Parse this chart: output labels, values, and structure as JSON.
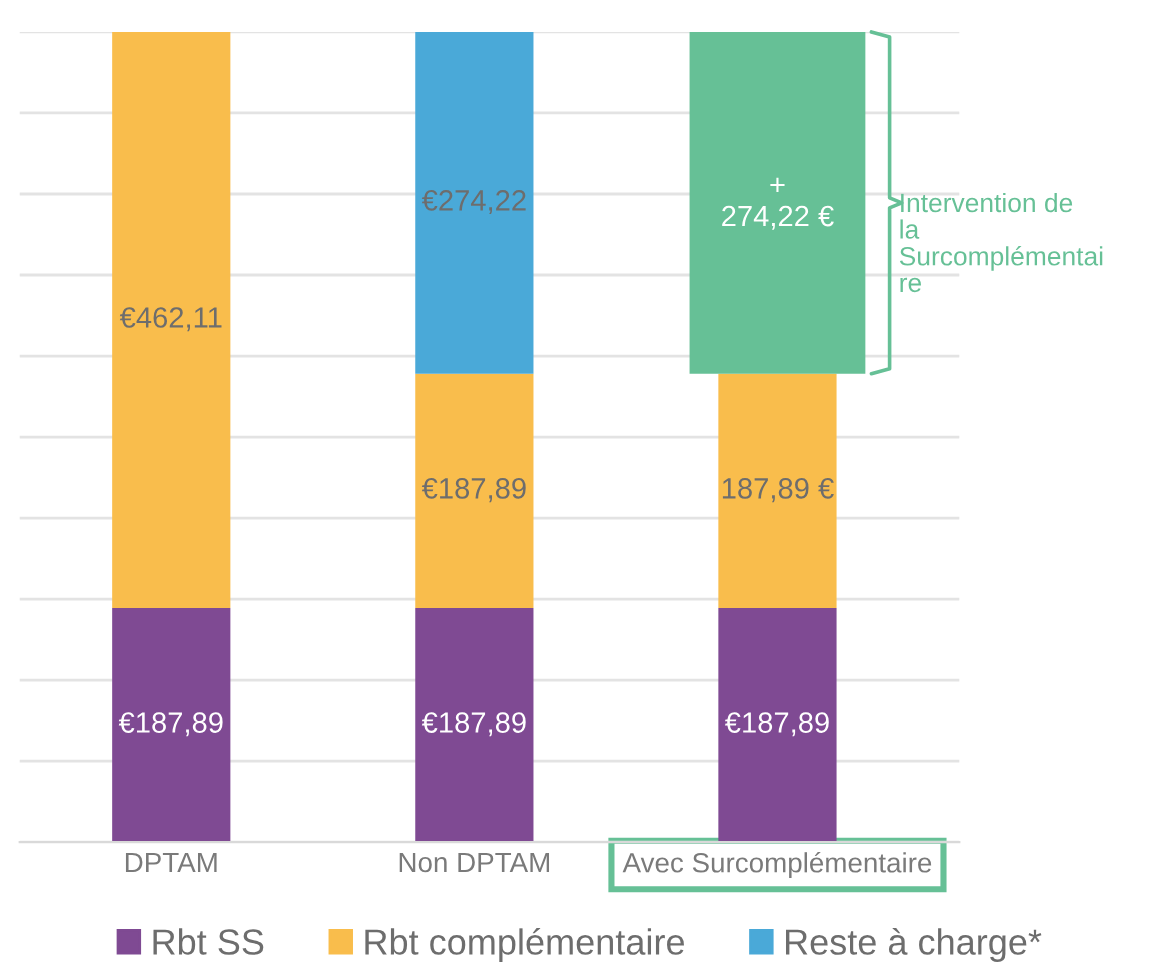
{
  "chart_data": {
    "type": "bar",
    "stacked": true,
    "categories": [
      "DPTAM",
      "Non DPTAM",
      "Avec Surcomplémentaire"
    ],
    "series": [
      {
        "name": "Rbt SS",
        "color": "#7f4a93",
        "values": [
          187.89,
          187.89,
          187.89
        ],
        "value_labels": [
          "€187,89",
          "€187,89",
          "€187,89"
        ]
      },
      {
        "name": "Rbt complémentaire",
        "color": "#f9bd4c",
        "values": [
          462.11,
          187.89,
          187.89
        ],
        "value_labels": [
          "€462,11",
          "€187,89",
          "187,89 €"
        ]
      },
      {
        "name": "Reste à charge*",
        "color": "#4aa9d8",
        "values": [
          null,
          274.22,
          null
        ],
        "value_labels": [
          null,
          "€274,22",
          null
        ]
      },
      {
        "color": "#66c096",
        "values": [
          null,
          null,
          274.22
        ],
        "value_labels": [
          null,
          null,
          "+\n274,22 €"
        ]
      }
    ],
    "ylim": [
      0,
      650
    ],
    "yticks": [
      {
        "value": 0,
        "label": null
      },
      {
        "value": 65,
        "label": null
      },
      {
        "value": 130,
        "label": null
      },
      {
        "value": 195,
        "label": null
      },
      {
        "value": 260,
        "label": null
      },
      {
        "value": 325,
        "label": null
      },
      {
        "value": 390,
        "label": null
      },
      {
        "value": 455,
        "label": null
      },
      {
        "value": 520,
        "label": null
      },
      {
        "value": 585,
        "label": null
      },
      {
        "value": 650,
        "label": null
      }
    ],
    "grid": "y",
    "legend": "bottom",
    "tick_labels": "x",
    "annotations": [
      "Intervention de la Surcomplémentaire"
    ]
  }
}
